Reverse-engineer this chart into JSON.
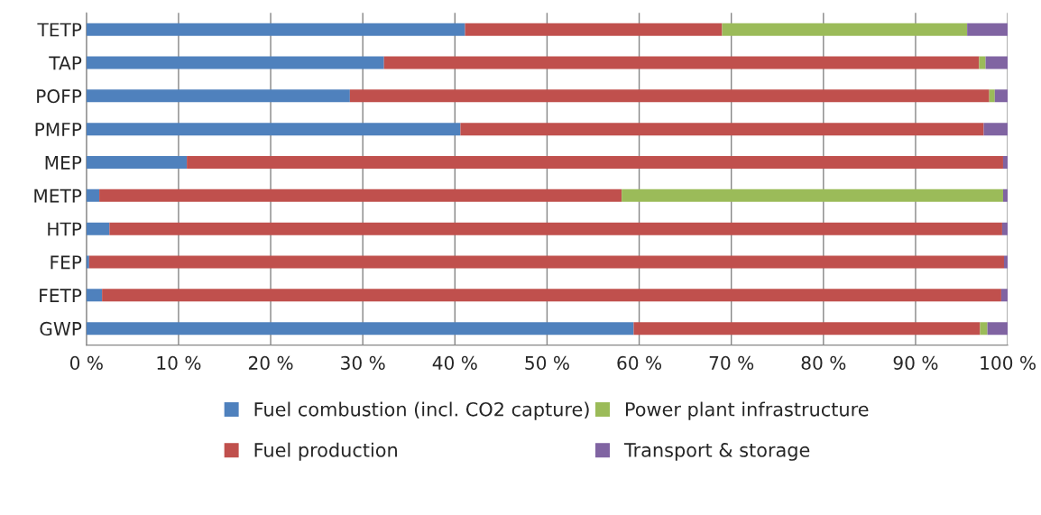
{
  "chart_data": {
    "type": "bar",
    "orientation": "horizontal",
    "stacked": true,
    "categories": [
      "TETP",
      "TAP",
      "POFP",
      "PMFP",
      "MEP",
      "METP",
      "HTP",
      "FEP",
      "FETP",
      "GWP"
    ],
    "series": [
      {
        "name": "Fuel combustion (incl. CO2 capture)",
        "color": "#4f81bd",
        "values": [
          41.1,
          32.3,
          28.6,
          40.6,
          10.9,
          1.4,
          2.5,
          0.3,
          1.7,
          59.4
        ]
      },
      {
        "name": "Fuel production",
        "color": "#c0504d",
        "values": [
          27.9,
          64.6,
          69.4,
          56.8,
          88.6,
          56.7,
          96.9,
          99.3,
          97.6,
          37.6
        ]
      },
      {
        "name": "Power plant infrastructure",
        "color": "#9bbb59",
        "values": [
          26.6,
          0.7,
          0.6,
          0,
          0,
          41.4,
          0,
          0,
          0,
          0.8
        ]
      },
      {
        "name": "Transport & storage",
        "color": "#8064a2",
        "values": [
          4.4,
          2.4,
          1.4,
          2.6,
          0.5,
          0.5,
          0.6,
          0.4,
          0.7,
          2.2
        ]
      }
    ],
    "xlim": [
      0,
      100
    ],
    "xticks": [
      {
        "value": 0,
        "label": "0 %"
      },
      {
        "value": 10,
        "label": "10 %"
      },
      {
        "value": 20,
        "label": "20 %"
      },
      {
        "value": 30,
        "label": "30 %"
      },
      {
        "value": 40,
        "label": "40 %"
      },
      {
        "value": 50,
        "label": "50 %"
      },
      {
        "value": 60,
        "label": "60 %"
      },
      {
        "value": 70,
        "label": "70 %"
      },
      {
        "value": 80,
        "label": "80 %"
      },
      {
        "value": 90,
        "label": "90 %"
      },
      {
        "value": 100,
        "label": "100 %"
      }
    ],
    "grid": "x",
    "legend": "bottom"
  }
}
